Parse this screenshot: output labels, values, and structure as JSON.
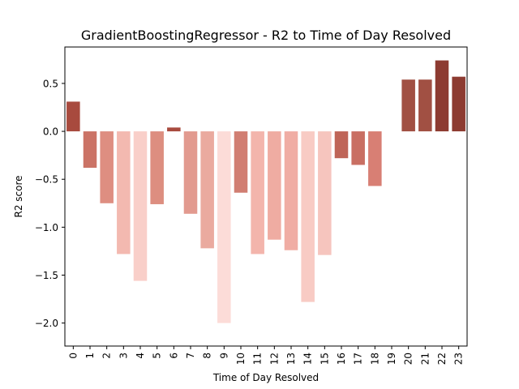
{
  "chart_data": {
    "type": "bar",
    "title": "GradientBoostingRegressor - R2 to Time of Day Resolved",
    "xlabel": "Time of Day Resolved",
    "ylabel": "R2 score",
    "categories": [
      "0",
      "1",
      "2",
      "3",
      "4",
      "5",
      "6",
      "7",
      "8",
      "9",
      "10",
      "11",
      "12",
      "13",
      "14",
      "15",
      "16",
      "17",
      "18",
      "19",
      "20",
      "21",
      "22",
      "23"
    ],
    "values": [
      0.31,
      -0.38,
      -0.75,
      -1.28,
      -1.56,
      -0.76,
      0.04,
      -0.86,
      -1.22,
      -2.0,
      -0.64,
      -1.28,
      -1.13,
      -1.24,
      -1.78,
      -1.29,
      -0.28,
      -0.35,
      -0.57,
      0.0,
      0.54,
      0.54,
      0.74,
      0.57
    ],
    "bar_colors": [
      "#a84a3e",
      "#cb7366",
      "#de8e81",
      "#f3b9b0",
      "#f9cfc9",
      "#dd8e80",
      "#a84a3e",
      "#e29a8f",
      "#eaaa9f",
      "#fcdcd8",
      "#d17e72",
      "#f3b5ac",
      "#efaca2",
      "#f0ada4",
      "#f8cbc4",
      "#f6c5be",
      "#bf6558",
      "#c96f63",
      "#d87f74",
      "#ffffff",
      "#a15043",
      "#a15043",
      "#8d3b31",
      "#8d3b31"
    ],
    "ylim": [
      -2.24,
      0.88
    ],
    "yticks": [
      0.5,
      0.0,
      -0.5,
      -1.0,
      -1.5,
      -2.0
    ],
    "ytick_labels": [
      "0.5",
      "0.0",
      "−0.5",
      "−1.0",
      "−1.5",
      "−2.0"
    ],
    "grid": false
  }
}
